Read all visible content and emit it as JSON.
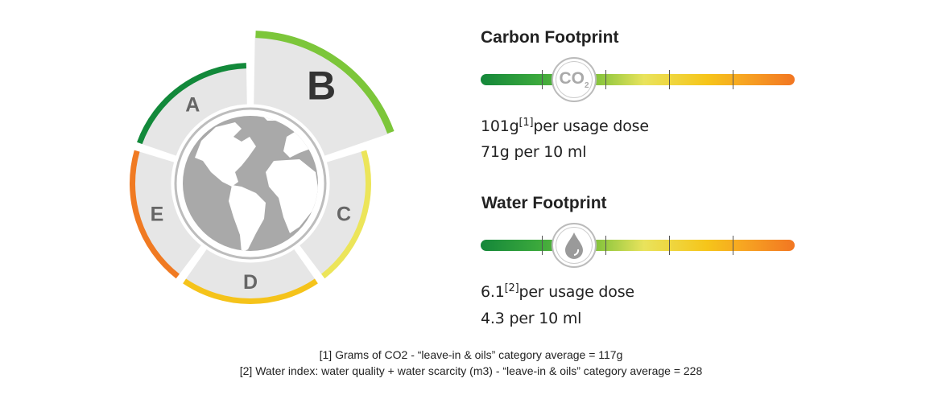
{
  "rating": {
    "selected": "B",
    "segments": [
      {
        "label": "A",
        "color": "#12893a"
      },
      {
        "label": "B",
        "color": "#7cc63a"
      },
      {
        "label": "C",
        "color": "#ece55a"
      },
      {
        "label": "D",
        "color": "#f5c31a"
      },
      {
        "label": "E",
        "color": "#f07a22"
      }
    ],
    "center_icon": "globe-icon"
  },
  "carbon": {
    "title": "Carbon Footprint",
    "icon": "co2-icon",
    "icon_text": "CO",
    "icon_sub": "2",
    "value": "101g",
    "ref": "[1]",
    "per_dose": "per usage dose",
    "per_10ml": "71g per 10 ml"
  },
  "water": {
    "title": "Water Footprint",
    "icon": "water-drop-icon",
    "value": "6.1",
    "ref": "[2]",
    "per_dose": "per usage dose",
    "per_10ml": "4.3 per 10 ml"
  },
  "footnotes": [
    "[1] Grams of CO2 - “leave-in & oils” category average = 117g",
    "[2] Water index: water quality + water scarcity (m3) - “leave-in & oils” category average = 228"
  ]
}
